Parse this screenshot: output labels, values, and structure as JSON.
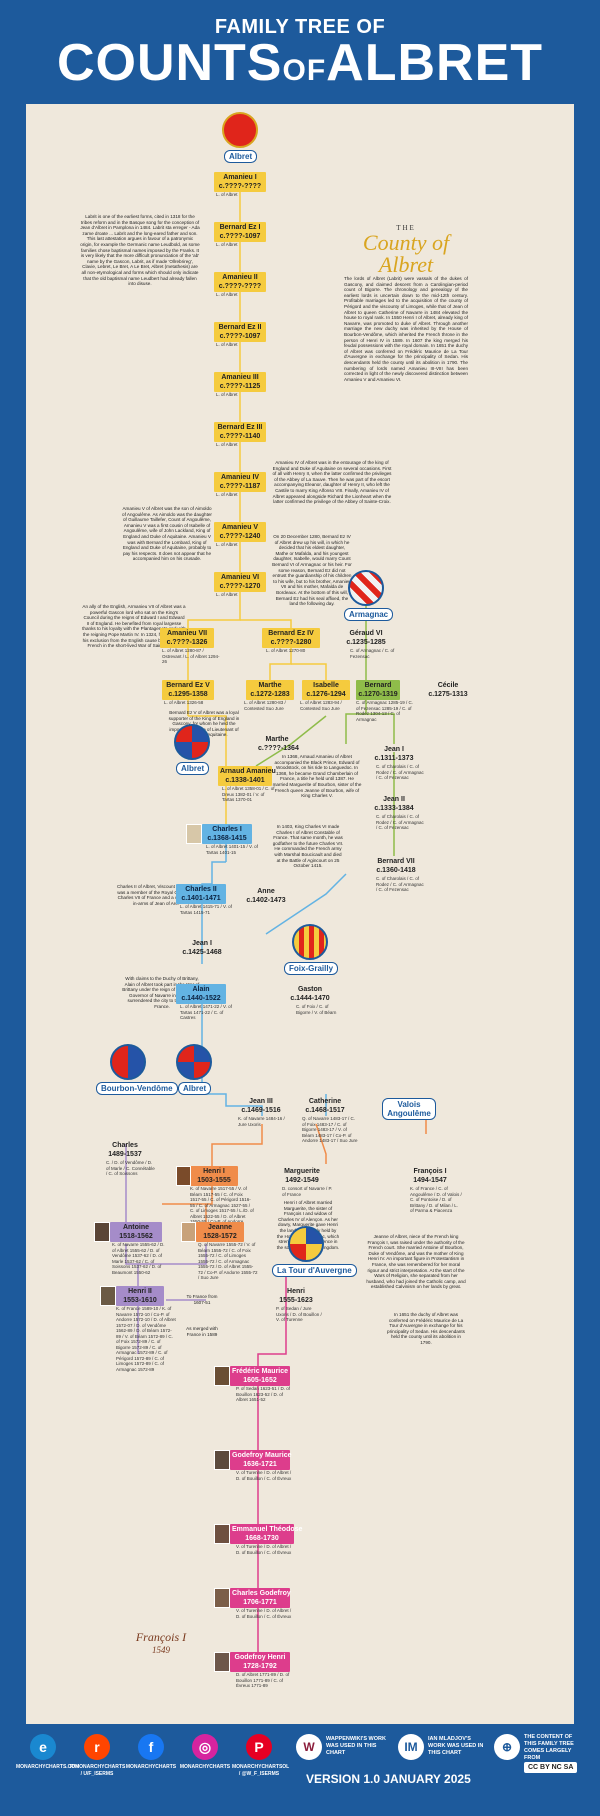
{
  "header": {
    "pre_title": "FAMILY TREE OF",
    "title_a": "COUNTS",
    "title_of": "OF",
    "title_b": "ALBRET"
  },
  "county": {
    "the": "THE",
    "title": "County of Albret",
    "text": "The lords of Albret (Labrit) were vassals of the dukes of Gascony, and claimed descent from a Carolingian-period count of Bigorre. The chronology and genealogy of the earliest lords is uncertain down to the mid-12th century. Profitable marriages led to the acquisition of the county of Périgord and the viscounty of Limoges, while that of Jean of Albret to queen Catherine of Navarre in 1484 elevated the house to royal rank. In 1550 Henri I of Albret, already king of Navarre, was promoted to duke of Albret. Through another marriage the new duchy was inherited by the House of Bourbon-Vendôme, which inherited the French throne in the person of Henri IV in 1589. In 1607 the king merged his feudal possessions with the royal domain. In 1651 the duchy of Albret was conferred on Frédéric Maurice de La Tour d'Auvergne in exchange for the principality of Sedan. His descendants held the county until its abolition in 1790. The numbering of lords named Amanieu III-VIII has been corrected in light of the newly discovered distinction between Amanieu V and Amanieu VI."
  },
  "notes": {
    "labrit": "Labrit is one of the earliest forms, cited in 1318 for the tribes reform and in the Basque song for the conception of Jean d'Albret in Pamplona in 1484. Labrit sta erreger - Ada zame droate ... Labrit and the long-eared father and son. This last attestation argues in favour of a patronymic origin, for example the Germanic name Leudbold, as some families chose baptismal names imposed by the Franks. It is very likely that the more difficult pronunciation of the 'ab' name by the Gascon, Labrit, as if made 'Ollrebrireg', Clavie, Lebret, Le Bret, A Le Bret, Albret (metathesis) are all non-etymological and forms which should only indicate that the old baptismal name Leudbert had already fallen into disuse.",
    "amanieu4": "Amanieu IV of Albret was in the entourage of the king of England and Duke of Aquitaine on several occasions. First of all with Henry II, when the latter confirmed the privileges of the Abbey of La Sauve. Then he was part of the escort accompanying Eleanor, daughter of Henry II, who left the Castile to marry King Alfonso VIII. Finally, Amanieu IV of Albret appeared alongside Richard the Lionheart when the latter confirmed the privilege of the Abbey of Sainte-Croix.",
    "amanieu5": "Amanieu V of Albret was the son of Aimoldo of Angoulême. As Aimoldo was the daughter of Guillaume Taillefer, Count of Angoulême, Amanieu V was a first cousin of Isabelle of Angoulême, wife of John Lackland, King of England and Duke of Aquitaine. Amanieu V was with Bernard the Lombard, King of England and Duke of Aquitaine, probably to pay his respects. It does not appear that he accompanied him on his crusade.",
    "bernard4": "On 20 December 1280, Bernard Ez IV of Albret drew up his will, in which he decided that his eldest daughter, Mathe or Mafalda, and his youngest daughter, Isabelle, would marry Count Bernard VI of Armagnac or his heir. For some reason, Bernard Ez did not entrust the guardianship of his children to his wife, but to his brother, Amanieu VII and his mother, Mafalda de Bordeaux. At the bottom of this will, Bernard Ez had his seal affixed, the land the following day.",
    "amanieu7": "An ally of the English, Armanieu VII of Albret was a powerful Gascon lord who sat on the King's Council during the reigns of Edward I and Edward II of England. He benefited from royal largesse thanks to his loyalty with the Plantagenets and with the reigning Pope Martin IV. In 1324, he contested his exclusion from the English cause by joining the French in the short-lived War of Saint-Sardos.",
    "bernard5": "Bernard Ez V of Albret was a loyal supporter of the King of England in Gascony, for whom he held the important position of Lieutenant of the Duchy of Aquitaine.",
    "arnaud": "In 1368, Arnaud Amanieu of Albret accompanied the Black Prince, Edward of Woodstock, on his ride to Languedoc. In 1368, he became Grand Chamberlain of France, a title he held until 1387. He married Marguerite of Bourbon, sister of the French queen Jeanne of Bourbon, wife of King Charles V.",
    "charles1": "In 1403, King Charles VI made Charles I of Albret Constable of France. That same month, he was godfather to the future Charles VII. He commanded the French army with Marshal Boucicault and died at the Battle of Agincourt on 25 October 1415.",
    "charles2": "Charles II of Albret, Viscount of Tartas, was a member of the Royal Council of Charles VII of France and a comrade-in-arms of Jean of Arc.",
    "alain": "With claims to the Duchy of Brittany, Alain of Albret took part in the War of Brittany under the reign of Charles VIII. Governor of Navarre in 1491, he surrendered the city to the King of France.",
    "henri1": "Henri I of Albret married Marguerite, the sister of François I and widow of Charles IV of Alençon. As her dowry, Marguerite gave Henri the lands previously held by the House of Armagnac, which strengthened his presence in the south-west of the kingdom.",
    "jeanne": "Jeanne of Albret, niece of the French king François I, was raised under the authority of the French court. She married Antoine of Bourbon, Duke of Vendôme, and was the mother of King Henri IV. An important figure in Protestantism in France, she was remembered for her moral rigour and strict interpretation. At the start of the Wars of Religion, she separated from her husband, who had joined the Catholic camp, and established Calvinism on her lands by great.",
    "sedan": "In 1651 the duchy of Albret was conferred on Frédéric Maurice de La Tour d'Auvergne in exchange for his principality of Sedan. His descendants held the county until its abolition in 1790.",
    "france1": "To France from 1607-51",
    "france2": "As merged with France in 1589"
  },
  "nodes": {
    "albret_top": "Albret",
    "n1": {
      "name": "Amanieu I",
      "dates": "c.????-????",
      "det": "L. of Albret"
    },
    "n2": {
      "name": "Bernard Ez I",
      "dates": "c.????-1097",
      "det": "L. of Albret"
    },
    "n3": {
      "name": "Amanieu II",
      "dates": "c.????-????",
      "det": "L. of Albret"
    },
    "n4": {
      "name": "Bernard Ez II",
      "dates": "c.????-1097",
      "det": "L. of Albret"
    },
    "n5": {
      "name": "Amanieu III",
      "dates": "c.????-1125",
      "det": "L. of Albret"
    },
    "n6": {
      "name": "Bernard Ez III",
      "dates": "c.????-1140",
      "det": "L. of Albret"
    },
    "n7": {
      "name": "Amanieu IV",
      "dates": "c.????-1187",
      "det": "L. of Albret"
    },
    "n8": {
      "name": "Amanieu V",
      "dates": "c.????-1240",
      "det": "L. of Albret"
    },
    "n9": {
      "name": "Amanieu VI",
      "dates": "c.????-1270",
      "det": "L. of Albret"
    },
    "armagnac": "Armagnac",
    "amanieu7": {
      "name": "Amanieu VII",
      "dates": "c.????-1326",
      "det": "L. of Albret  1280-87 / Ostrevant / L. of Albret  1294-26"
    },
    "bernard4": {
      "name": "Bernard Ez IV",
      "dates": "c.????-1280",
      "det": "L. of Albret  1270-80"
    },
    "geraud6": {
      "name": "Géraud VI",
      "dates": "c.1235-1285",
      "det": "C. of Armagnac / C. of Fezensac"
    },
    "bernard5": {
      "name": "Bernard Ez V",
      "dates": "c.1295-1358",
      "det": "L. of Albret  1326-58"
    },
    "marthe1": {
      "name": "Marthe",
      "dates": "c.1272-1283",
      "det": "L. of Albret 1280-83 / Contested Suo Jure"
    },
    "isabelle": {
      "name": "Isabelle",
      "dates": "c.1276-1294",
      "det": "L. of Albret 1283-94 / Contested Suo Jure"
    },
    "bernard6": {
      "name": "Bernard",
      "dates": "c.1270-1319",
      "det": "C. of Armagnac 1285-19 / C. of Fezensac 1285-19 / C. of Rodez 1304-13 / C. of Armagnac"
    },
    "cecile": {
      "name": "Cécile",
      "dates": "c.1275-1313"
    },
    "marthe2": {
      "name": "Marthe",
      "dates": "c.????-1364"
    },
    "jean1": {
      "name": "Jean I",
      "dates": "c.1311-1373",
      "det": "C. of Charolais / C. of Rodez / C. of Armagnac / C. of Fezensac"
    },
    "arnaud": {
      "name": "Arnaud Amanieu",
      "dates": "c.1338-1401",
      "det": "L. of Albret 1358-01 / C. of Dreux 1382-01 / V. of Tartas 1370-01"
    },
    "jean2": {
      "name": "Jean II",
      "dates": "c.1333-1384",
      "det": "C. of Charolais / C. of Rodez / C. of Armagnac / C. of Fezensac"
    },
    "charles1": {
      "name": "Charles I",
      "dates": "c.1368-1415",
      "det": "L. of Albret 1401-15 / V. of Tartas 1401-15"
    },
    "bernard7": {
      "name": "Bernard VII",
      "dates": "c.1360-1418",
      "det": "C. of Charolais / C. of Rodez / C. of Armagnac / C. of Fezensac"
    },
    "charles2": {
      "name": "Charles II",
      "dates": "c.1401-1471",
      "det": "L. of Albret 1415-71 / V. of Tartas 1415-71"
    },
    "anne": {
      "name": "Anne",
      "dates": "c.1402-1473"
    },
    "jean_l": {
      "name": "Jean I",
      "dates": "c.1425-1468"
    },
    "foix": "Foix-Grailly",
    "alain": {
      "name": "Alain",
      "dates": "c.1440-1522",
      "det": "L. of Albret 1471-22 / V. of Tartas 1471-22 / C. of Castres"
    },
    "gaston": {
      "name": "Gaston",
      "dates": "c.1444-1470",
      "det": "C. of Foix / C. of Bigorre / V. of Béarn"
    },
    "bourbon": "Bourbon-Vendôme",
    "albret2": "Albret",
    "jean3": {
      "name": "Jean III",
      "dates": "c.1469-1516",
      "det": "K. of Navarre 1484-16 / Jure Uxoris"
    },
    "catherine": {
      "name": "Catherine",
      "dates": "c.1468-1517",
      "det": "Q. of Navarre 1483-17 / C. of Foix 1483-17 / C. of Bigorre 1483-17 / V. of Béarn 1483-17 / Co-P. of Andorre 1483-17 / Suo Jure"
    },
    "valois": "Valois Angoulême",
    "charles_bv": {
      "name": "Charles",
      "dates": "1489-1537",
      "det": "C. / D. of Vendôme / D. of Marle / C. Connétable / C. of Soissons"
    },
    "henri1": {
      "name": "Henri I",
      "dates": "1503-1555",
      "det": "K. of Navarre 1517-55 / V. of Béarn 1517-55 / C. of Foix 1517-55 / C. of Périgord 1516-55 / C. of Armagnac 1527-55 / C. of Limoges 1517-55 / L./D. of Albret 1522-55 / D. of Albret 1550-55 / Co-P. of Andorre 1517-55"
    },
    "marguerite": {
      "name": "Marguerite",
      "dates": "1492-1549",
      "det": "D. consort of Navarre / P. of France"
    },
    "francois1": {
      "name": "François I",
      "dates": "1494-1547",
      "det": "K. of France / C. of Angoulême / D. of Valois / C. of Pontoise / D. of Brittany / D. of Milan / L. of Parma & Piacenza"
    },
    "antoine": {
      "name": "Antoine",
      "dates": "1518-1562",
      "det": "K. of Navarre 1555-62 / D. of Albret 1555-62 / D. of Vendôme 1537-62 / D. of Marle 1537-62 / C. of Soissons 1537-62 / D. of Beaumont 1550-62"
    },
    "jeanne": {
      "name": "Jeanne",
      "dates": "1528-1572",
      "det": "Q. of Navarre 1555-72 / V. of Béarn 1555-72 / C. of Foix 1555-72 / C. of Limoges 1555-72 / C. of Armagnac 1555-72 / D. of Albret 1555-72 / Co-P. of Andorre 1555-72 / Suo Jure"
    },
    "tour": "La Tour d'Auvergne",
    "henri": {
      "name": "Henri",
      "dates": "1555-1623",
      "det": "P. of Sedan / Jure Uxoris / D. of Bouillon / V. of Turenne"
    },
    "henri2": {
      "name": "Henri II",
      "dates": "1553-1610",
      "det": "K. of France 1589-10 / K. of Navarre 1572-10 / Co-P. of Andorre 1572-10 / D. of Albret 1572-07 / D. of Vendôme 1562-89 / D. of Béarn 1572-89 / V. of Béarn 1572-89 / C. of Foix 1572-89 / C. of Bigorre 1572-89 / C. of Armagnac 1572-89 / C. of Périgord 1572-89 / C. of Limoges 1572-89 / C. of Armagnac 1572-89"
    },
    "frederic": {
      "name": "Frédéric Maurice",
      "dates": "1605-1652",
      "det": "P. of Sedan 1623-51 / D. of Bouillon 1623-52 / D. of Albret 1651-52"
    },
    "godefroy": {
      "name": "Godefroy Maurice",
      "dates": "1636-1721",
      "det": "V. of Turenne / D. of Albret / D. of Bouillon / C. of Évreux"
    },
    "emmanuel": {
      "name": "Emmanuel Théodose",
      "dates": "1668-1730",
      "det": "V. of Turenne / D. of Albret / D. of Bouillon / C. of Évreux"
    },
    "charles_g": {
      "name": "Charles Godefroy",
      "dates": "1706-1771",
      "det": "V. of Turenne / D. of Albret / D. of Bouillon / C. of Évreux"
    },
    "godefroy_h": {
      "name": "Godefroy Henri",
      "dates": "1728-1792",
      "det": "D. of Albret 1771-89 / D. of Bouillon 1771-89 / C. of Évreux 1771-89"
    }
  },
  "signature": "François I",
  "signature_year": "1549",
  "footer": {
    "social": [
      {
        "name": "WEBSITE",
        "handle": "MONARCHYCHARTS.COM",
        "color": "#1a88d0",
        "glyph": "e"
      },
      {
        "name": "REDDIT",
        "handle": "R/MONARCHYCHARTS / U/F_ISERMS",
        "color": "#ff4500",
        "glyph": "r"
      },
      {
        "name": "FACEBOOK",
        "handle": "MONARCHYCHARTS",
        "color": "#1877f2",
        "glyph": "f"
      },
      {
        "name": "INSTAGRAM",
        "handle": "MONARCHYCHARTS",
        "color": "#d6249f",
        "glyph": "◎"
      },
      {
        "name": "PINTEREST",
        "handle": "MONARCHYCHARTSOL / @W_F_ISERMS",
        "color": "#e60023",
        "glyph": "P"
      }
    ],
    "credit1": "WAPPENWIKI'S WORK WAS USED IN THIS CHART",
    "credit2": "IAN MLADJOV'S WORK WAS USED IN THIS CHART",
    "source": "THE CONTENT OF THIS FAMILY TREE COMES LARGELY FROM",
    "version": "VERSION 1.0 JANUARY 2025",
    "license": "CC BY NC SA"
  },
  "colors": {
    "accent": "#1d5a9c",
    "background": "#efe8dc",
    "line_yellow": "#f5cb3e",
    "line_green": "#8fbc4a",
    "line_blue": "#63b3e3",
    "line_purple": "#a58cc9",
    "line_pink": "#dd3d8c",
    "line_orange": "#f08c4a"
  }
}
